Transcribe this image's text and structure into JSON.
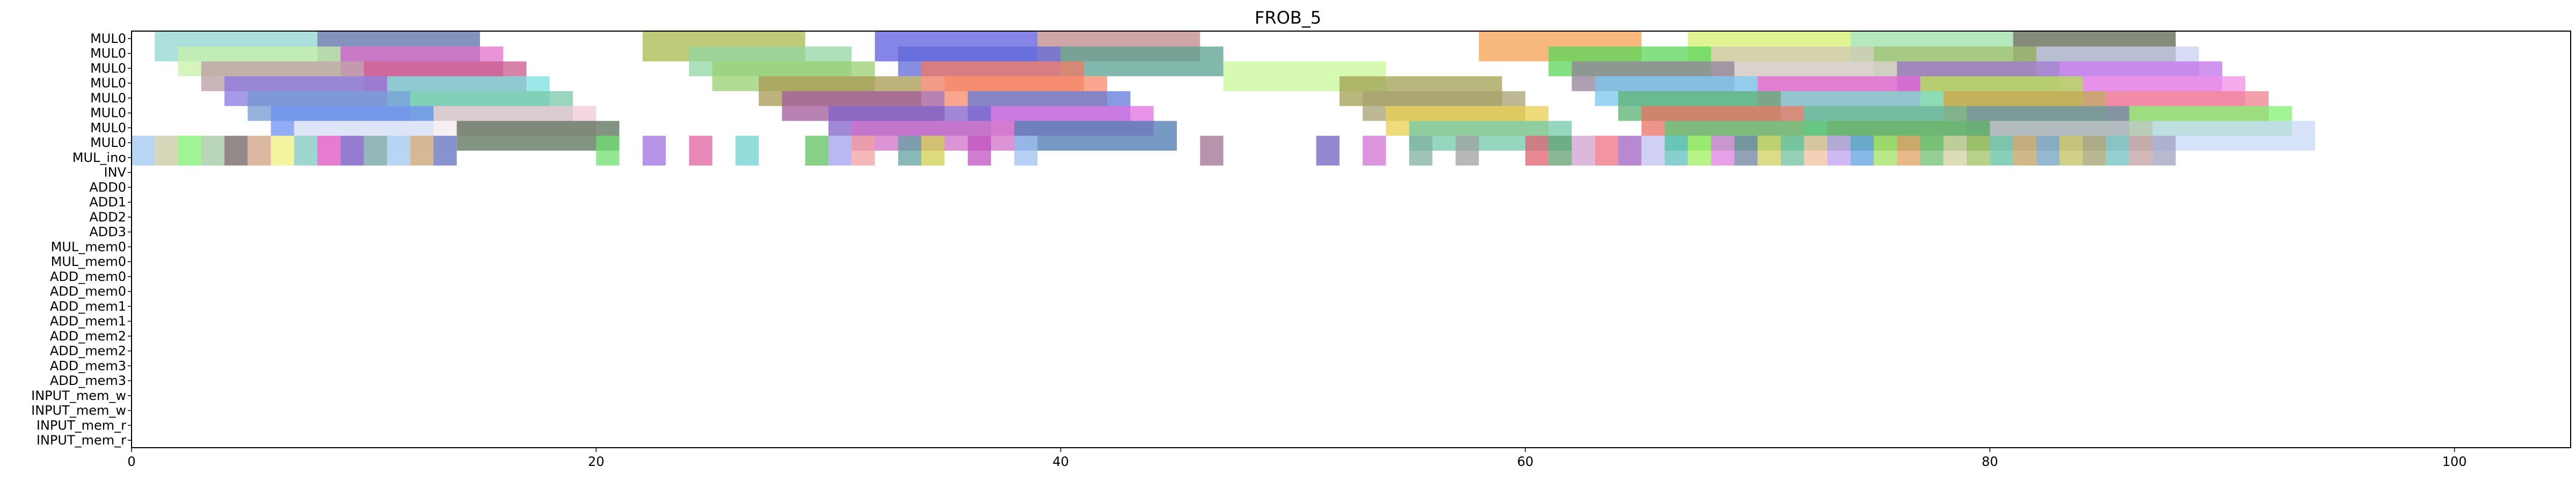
{
  "chart_data": {
    "type": "gantt",
    "title": "FROB_5",
    "xlabel": "",
    "ylabel": "",
    "xlim": [
      0,
      105
    ],
    "xticks": [
      0,
      20,
      40,
      60,
      80,
      100
    ],
    "grid": false,
    "rows": [
      "MUL0",
      "MUL0",
      "MUL0",
      "MUL0",
      "MUL0",
      "MUL0",
      "MUL0",
      "MUL0",
      "MUL_ino",
      "INV",
      "ADD0",
      "ADD1",
      "ADD2",
      "ADD3",
      "MUL_mem0",
      "MUL_mem0",
      "ADD_mem0",
      "ADD_mem0",
      "ADD_mem1",
      "ADD_mem1",
      "ADD_mem2",
      "ADD_mem2",
      "ADD_mem3",
      "ADD_mem3",
      "INPUT_mem_w",
      "INPUT_mem_w",
      "INPUT_mem_r",
      "INPUT_mem_r"
    ],
    "tasks": [
      {
        "row": 0,
        "start": 1,
        "end": 8,
        "color": "#8fd6d0"
      },
      {
        "row": 0,
        "start": 8,
        "end": 15,
        "color": "#5a6fa8"
      },
      {
        "row": 0,
        "start": 22,
        "end": 29,
        "color": "#a8b84a"
      },
      {
        "row": 0,
        "start": 32,
        "end": 39,
        "color": "#5c5ce0"
      },
      {
        "row": 0,
        "start": 39,
        "end": 46,
        "color": "#c08a8a"
      },
      {
        "row": 0,
        "start": 58,
        "end": 65,
        "color": "#f5a050"
      },
      {
        "row": 0,
        "start": 67,
        "end": 74,
        "color": "#d6f06e"
      },
      {
        "row": 0,
        "start": 74,
        "end": 81,
        "color": "#9ee0a8"
      },
      {
        "row": 0,
        "start": 81,
        "end": 88,
        "color": "#5e6650"
      },
      {
        "row": 1,
        "start": 2,
        "end": 9,
        "color": "#c8f0a8"
      },
      {
        "row": 1,
        "start": 9,
        "end": 16,
        "color": "#e070c8"
      },
      {
        "row": 1,
        "start": 24,
        "end": 31,
        "color": "#90d6a0"
      },
      {
        "row": 1,
        "start": 33,
        "end": 40,
        "color": "#6068d8"
      },
      {
        "row": 1,
        "start": 40,
        "end": 47,
        "color": "#5aa090"
      },
      {
        "row": 1,
        "start": 61,
        "end": 68,
        "color": "#5ad65a"
      },
      {
        "row": 1,
        "start": 68,
        "end": 75,
        "color": "#d0c8b0"
      },
      {
        "row": 1,
        "start": 75,
        "end": 82,
        "color": "#a0c070"
      },
      {
        "row": 1,
        "start": 82,
        "end": 89,
        "color": "#c8d0f0"
      },
      {
        "row": 2,
        "start": 3,
        "end": 10,
        "color": "#b89ca0"
      },
      {
        "row": 2,
        "start": 10,
        "end": 17,
        "color": "#c85a8a"
      },
      {
        "row": 2,
        "start": 25,
        "end": 32,
        "color": "#98d070"
      },
      {
        "row": 2,
        "start": 34,
        "end": 41,
        "color": "#f07860"
      },
      {
        "row": 2,
        "start": 47,
        "end": 54,
        "color": "#c8f898"
      },
      {
        "row": 2,
        "start": 62,
        "end": 69,
        "color": "#908098"
      },
      {
        "row": 2,
        "start": 69,
        "end": 76,
        "color": "#d8d0d0"
      },
      {
        "row": 2,
        "start": 76,
        "end": 83,
        "color": "#9870c8"
      },
      {
        "row": 2,
        "start": 83,
        "end": 90,
        "color": "#c070e8"
      },
      {
        "row": 3,
        "start": 4,
        "end": 11,
        "color": "#8878e0"
      },
      {
        "row": 3,
        "start": 11,
        "end": 18,
        "color": "#78e0e0"
      },
      {
        "row": 3,
        "start": 27,
        "end": 34,
        "color": "#a89850"
      },
      {
        "row": 3,
        "start": 35,
        "end": 42,
        "color": "#f88868"
      },
      {
        "row": 3,
        "start": 52,
        "end": 59,
        "color": "#a0a050"
      },
      {
        "row": 3,
        "start": 63,
        "end": 70,
        "color": "#78c8f0"
      },
      {
        "row": 3,
        "start": 70,
        "end": 77,
        "color": "#e060d0"
      },
      {
        "row": 3,
        "start": 77,
        "end": 84,
        "color": "#b8e050"
      },
      {
        "row": 3,
        "start": 84,
        "end": 91,
        "color": "#f090e8"
      },
      {
        "row": 4,
        "start": 5,
        "end": 12,
        "color": "#7098d0"
      },
      {
        "row": 4,
        "start": 12,
        "end": 19,
        "color": "#78c8a8"
      },
      {
        "row": 4,
        "start": 28,
        "end": 35,
        "color": "#a05a9a"
      },
      {
        "row": 4,
        "start": 36,
        "end": 43,
        "color": "#6078d8"
      },
      {
        "row": 4,
        "start": 53,
        "end": 60,
        "color": "#a8a070"
      },
      {
        "row": 4,
        "start": 64,
        "end": 71,
        "color": "#58b070"
      },
      {
        "row": 4,
        "start": 71,
        "end": 78,
        "color": "#78d8c8"
      },
      {
        "row": 4,
        "start": 78,
        "end": 85,
        "color": "#c0a050"
      },
      {
        "row": 4,
        "start": 85,
        "end": 92,
        "color": "#f08090"
      },
      {
        "row": 5,
        "start": 6,
        "end": 13,
        "color": "#6a90f0"
      },
      {
        "row": 5,
        "start": 13,
        "end": 20,
        "color": "#f0c8d8"
      },
      {
        "row": 5,
        "start": 30,
        "end": 37,
        "color": "#8060c8"
      },
      {
        "row": 5,
        "start": 37,
        "end": 44,
        "color": "#e070e0"
      },
      {
        "row": 5,
        "start": 54,
        "end": 61,
        "color": "#e8d050"
      },
      {
        "row": 5,
        "start": 65,
        "end": 72,
        "color": "#e87060"
      },
      {
        "row": 5,
        "start": 72,
        "end": 79,
        "color": "#68b090"
      },
      {
        "row": 5,
        "start": 79,
        "end": 86,
        "color": "#6090a0"
      },
      {
        "row": 5,
        "start": 86,
        "end": 93,
        "color": "#80f070"
      },
      {
        "row": 6,
        "start": 7,
        "end": 14,
        "color": "#f8f8f8"
      },
      {
        "row": 6,
        "start": 14,
        "end": 21,
        "color": "#5a7058"
      },
      {
        "row": 6,
        "start": 31,
        "end": 38,
        "color": "#d070c8"
      },
      {
        "row": 6,
        "start": 38,
        "end": 45,
        "color": "#4878b0"
      },
      {
        "row": 6,
        "start": 55,
        "end": 62,
        "color": "#70c8a8"
      },
      {
        "row": 6,
        "start": 66,
        "end": 73,
        "color": "#58c878"
      },
      {
        "row": 6,
        "start": 73,
        "end": 80,
        "color": "#60b060"
      },
      {
        "row": 6,
        "start": 80,
        "end": 87,
        "color": "#c0c0c0"
      },
      {
        "row": 6,
        "start": 87,
        "end": 94,
        "color": "#c8d8f8"
      },
      {
        "row": 7,
        "start": 0,
        "end": 1,
        "color": "#a0c8f0"
      },
      {
        "row": 7,
        "start": 1,
        "end": 2,
        "color": "#c8c8a0"
      },
      {
        "row": 7,
        "start": 2,
        "end": 3,
        "color": "#80f070"
      },
      {
        "row": 7,
        "start": 3,
        "end": 4,
        "color": "#a0c8a0"
      },
      {
        "row": 7,
        "start": 4,
        "end": 5,
        "color": "#706060"
      },
      {
        "row": 7,
        "start": 5,
        "end": 6,
        "color": "#d0a080"
      },
      {
        "row": 7,
        "start": 6,
        "end": 7,
        "color": "#f0f080"
      },
      {
        "row": 7,
        "start": 7,
        "end": 8,
        "color": "#80c8c0"
      },
      {
        "row": 7,
        "start": 8,
        "end": 9,
        "color": "#e050c0"
      },
      {
        "row": 7,
        "start": 9,
        "end": 10,
        "color": "#7050c0"
      },
      {
        "row": 7,
        "start": 10,
        "end": 11,
        "color": "#70a0a0"
      },
      {
        "row": 7,
        "start": 11,
        "end": 12,
        "color": "#a0c8f0"
      },
      {
        "row": 7,
        "start": 12,
        "end": 13,
        "color": "#c8a070"
      },
      {
        "row": 7,
        "start": 13,
        "end": 14,
        "color": "#6070c0"
      },
      {
        "row": 7,
        "start": 20,
        "end": 21,
        "color": "#70e070"
      },
      {
        "row": 7,
        "start": 22,
        "end": 23,
        "color": "#a070e0"
      },
      {
        "row": 7,
        "start": 24,
        "end": 25,
        "color": "#e060a0"
      },
      {
        "row": 7,
        "start": 26,
        "end": 27,
        "color": "#70d0d0"
      },
      {
        "row": 7,
        "start": 29,
        "end": 30,
        "color": "#60c060"
      },
      {
        "row": 7,
        "start": 30,
        "end": 31,
        "color": "#a0a0f0"
      },
      {
        "row": 7,
        "start": 31,
        "end": 32,
        "color": "#f0a0a0"
      },
      {
        "row": 7,
        "start": 33,
        "end": 34,
        "color": "#60a0a0"
      },
      {
        "row": 7,
        "start": 34,
        "end": 35,
        "color": "#d0d050"
      },
      {
        "row": 7,
        "start": 36,
        "end": 37,
        "color": "#c050c0"
      },
      {
        "row": 7,
        "start": 38,
        "end": 39,
        "color": "#a0c0f0"
      },
      {
        "row": 7,
        "start": 46,
        "end": 47,
        "color": "#a07090"
      },
      {
        "row": 7,
        "start": 51,
        "end": 52,
        "color": "#7060c0"
      },
      {
        "row": 7,
        "start": 53,
        "end": 54,
        "color": "#d070d0"
      },
      {
        "row": 7,
        "start": 55,
        "end": 56,
        "color": "#80b0a0"
      },
      {
        "row": 7,
        "start": 57,
        "end": 58,
        "color": "#a0a0a0"
      },
      {
        "row": 7,
        "start": 60,
        "end": 61,
        "color": "#e06070"
      },
      {
        "row": 7,
        "start": 61,
        "end": 62,
        "color": "#60a070"
      },
      {
        "row": 7,
        "start": 62,
        "end": 63,
        "color": "#d0a0d0"
      },
      {
        "row": 7,
        "start": 63,
        "end": 64,
        "color": "#f07080"
      },
      {
        "row": 7,
        "start": 64,
        "end": 65,
        "color": "#a060c0"
      },
      {
        "row": 7,
        "start": 65,
        "end": 66,
        "color": "#c0c0f0"
      },
      {
        "row": 7,
        "start": 66,
        "end": 67,
        "color": "#60c0c0"
      },
      {
        "row": 7,
        "start": 67,
        "end": 68,
        "color": "#a0f060"
      },
      {
        "row": 7,
        "start": 68,
        "end": 69,
        "color": "#e080e0"
      },
      {
        "row": 7,
        "start": 69,
        "end": 70,
        "color": "#7080a0"
      },
      {
        "row": 7,
        "start": 70,
        "end": 71,
        "color": "#d0d060"
      },
      {
        "row": 7,
        "start": 71,
        "end": 72,
        "color": "#70c0a0"
      },
      {
        "row": 7,
        "start": 72,
        "end": 73,
        "color": "#f0c0a0"
      },
      {
        "row": 7,
        "start": 73,
        "end": 74,
        "color": "#c0a0f0"
      },
      {
        "row": 7,
        "start": 74,
        "end": 75,
        "color": "#60a0e0"
      },
      {
        "row": 7,
        "start": 75,
        "end": 76,
        "color": "#a0e060"
      },
      {
        "row": 7,
        "start": 76,
        "end": 77,
        "color": "#e0a060"
      },
      {
        "row": 7,
        "start": 77,
        "end": 78,
        "color": "#70c070"
      },
      {
        "row": 7,
        "start": 78,
        "end": 79,
        "color": "#d0d0a0"
      },
      {
        "row": 7,
        "start": 79,
        "end": 80,
        "color": "#a0c060"
      },
      {
        "row": 7,
        "start": 80,
        "end": 81,
        "color": "#60c0a0"
      },
      {
        "row": 7,
        "start": 81,
        "end": 82,
        "color": "#c0a060"
      },
      {
        "row": 7,
        "start": 82,
        "end": 83,
        "color": "#70a0c0"
      },
      {
        "row": 7,
        "start": 83,
        "end": 84,
        "color": "#c0c060"
      },
      {
        "row": 7,
        "start": 84,
        "end": 85,
        "color": "#a0a070"
      },
      {
        "row": 7,
        "start": 85,
        "end": 86,
        "color": "#70c0c0"
      },
      {
        "row": 7,
        "start": 86,
        "end": 87,
        "color": "#c0a0a0"
      },
      {
        "row": 7,
        "start": 87,
        "end": 88,
        "color": "#a0a0c0"
      }
    ]
  }
}
